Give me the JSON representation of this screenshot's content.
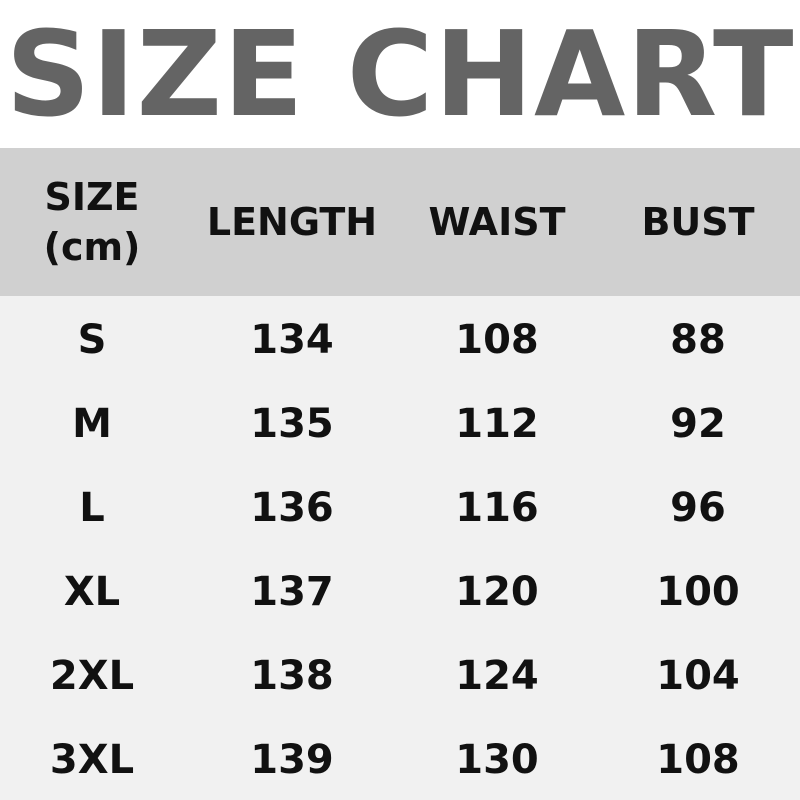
{
  "title": "SIZE CHART",
  "headers": [
    "SIZE",
    "(cm)",
    "LENGTH",
    "WAIST",
    "BUST"
  ],
  "rows": [
    [
      "S",
      "134",
      "108",
      "88"
    ],
    [
      "M",
      "135",
      "112",
      "92"
    ],
    [
      "L",
      "136",
      "116",
      "96"
    ],
    [
      "XL",
      "137",
      "120",
      "100"
    ],
    [
      "2XL",
      "138",
      "124",
      "104"
    ],
    [
      "3XL",
      "139",
      "130",
      "108"
    ]
  ]
}
